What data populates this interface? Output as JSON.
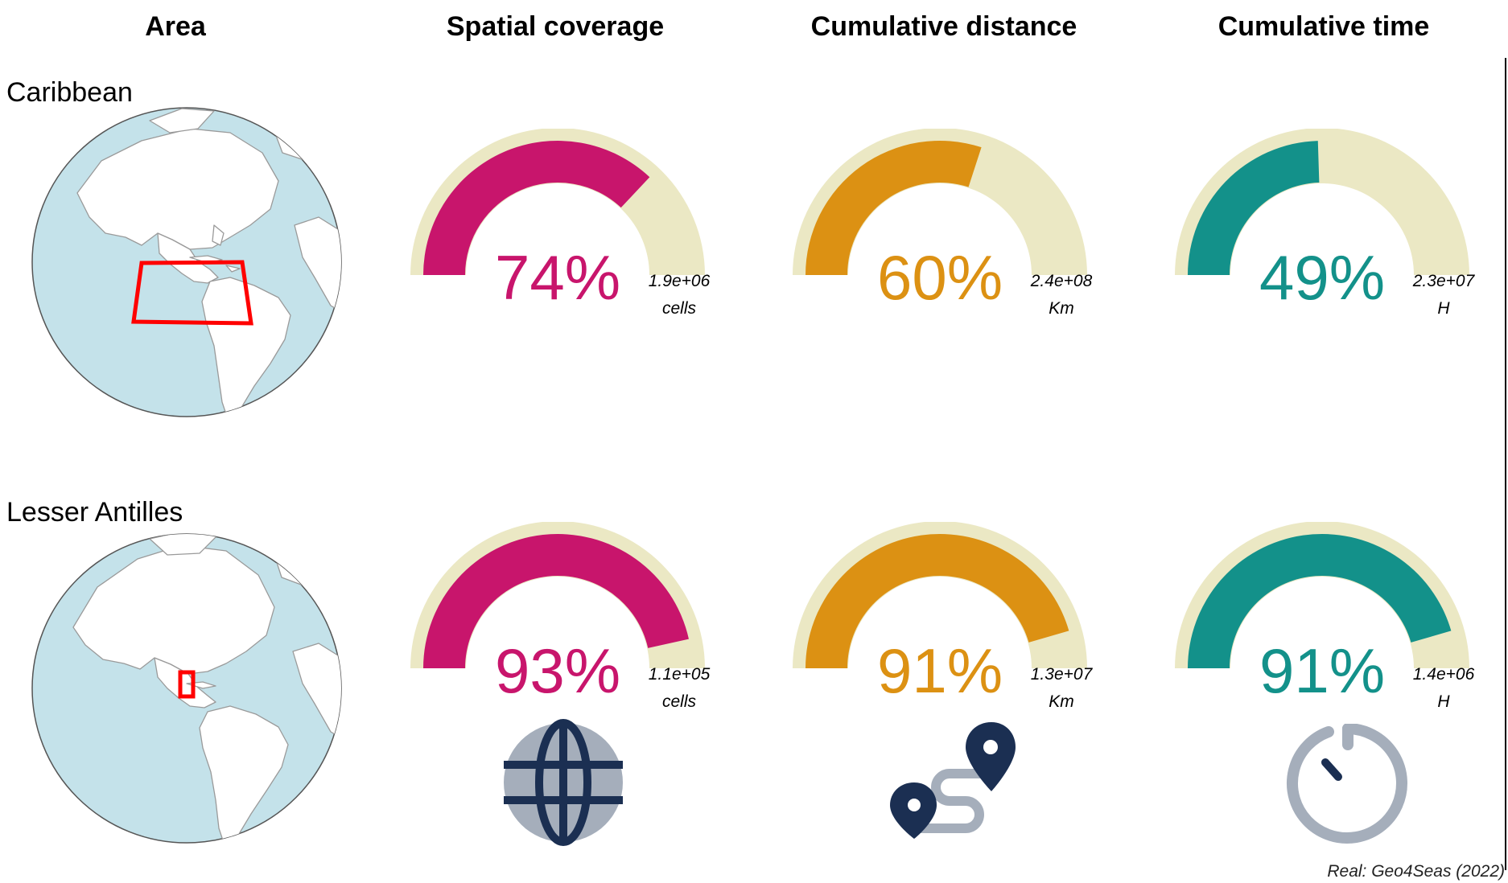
{
  "headers": {
    "area": "Area",
    "spatial": "Spatial coverage",
    "distance": "Cumulative distance",
    "time": "Cumulative time"
  },
  "rows": [
    {
      "area": "Caribbean",
      "highlight": "large-box"
    },
    {
      "area": "Lesser Antilles",
      "highlight": "small-box"
    }
  ],
  "colors": {
    "spatial": "#c8156c",
    "distance": "#dc9113",
    "time": "#13918a",
    "track": "#ebe8c4",
    "icon_dark": "#1b2f52",
    "icon_light": "#a5aebb",
    "ocean": "#c4e2ea",
    "land": "#ffffff",
    "box": "#ff0000"
  },
  "chart_data": [
    {
      "type": "gauge",
      "area": "Caribbean",
      "metric": "Spatial coverage",
      "percent": 74,
      "label": "74%",
      "total": "1.9e+06",
      "unit": "cells",
      "color": "#c8156c"
    },
    {
      "type": "gauge",
      "area": "Caribbean",
      "metric": "Cumulative distance",
      "percent": 60,
      "label": "60%",
      "total": "2.4e+08",
      "unit": "Km",
      "color": "#dc9113"
    },
    {
      "type": "gauge",
      "area": "Caribbean",
      "metric": "Cumulative time",
      "percent": 49,
      "label": "49%",
      "total": "2.3e+07",
      "unit": "H",
      "color": "#13918a"
    },
    {
      "type": "gauge",
      "area": "Lesser Antilles",
      "metric": "Spatial coverage",
      "percent": 93,
      "label": "93%",
      "total": "1.1e+05",
      "unit": "cells",
      "color": "#c8156c"
    },
    {
      "type": "gauge",
      "area": "Lesser Antilles",
      "metric": "Cumulative distance",
      "percent": 91,
      "label": "91%",
      "total": "1.3e+07",
      "unit": "Km",
      "color": "#dc9113"
    },
    {
      "type": "gauge",
      "area": "Lesser Antilles",
      "metric": "Cumulative time",
      "percent": 91,
      "label": "91%",
      "total": "1.4e+06",
      "unit": "H",
      "color": "#13918a"
    }
  ],
  "icons": [
    "globe-icon",
    "route-icon",
    "timer-icon"
  ],
  "credit": "Real: Geo4Seas (2022)"
}
